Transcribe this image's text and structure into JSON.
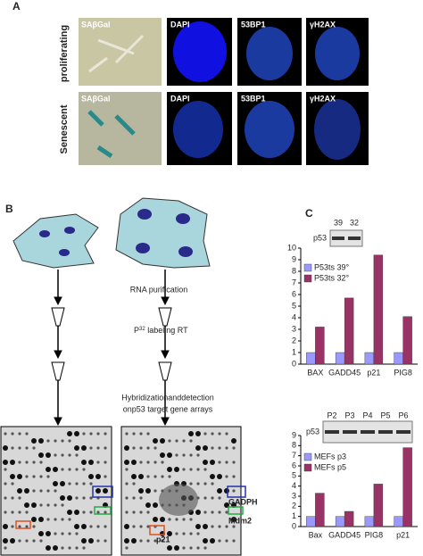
{
  "panel_a": {
    "label": "A",
    "rows": [
      {
        "label": "proliferating",
        "columns": [
          "SAβGal",
          "DAPI",
          "53BP1",
          "γH2AX"
        ]
      },
      {
        "label": "Senescent",
        "columns": [
          "SAβGal",
          "DAPI",
          "53BP1",
          "γH2AX"
        ]
      }
    ]
  },
  "panel_b": {
    "label": "B",
    "steps": [
      "RNA purification"
    ],
    "labeling": {
      "prefix": "P",
      "superscript": "32",
      "suffix": " labeling RT"
    },
    "hybridization": [
      "Hybridizationanddetection",
      "onp53 target gene arrays"
    ],
    "array_labels": [
      "GADPH",
      "Mdm2",
      "p21"
    ]
  },
  "panel_c_label": "C",
  "chart_data": [
    {
      "type": "bar",
      "blot_label": "p53",
      "blot_lanes": [
        "39",
        "32"
      ],
      "categories": [
        "BAX",
        "GADD45",
        "p21",
        "PIG8"
      ],
      "series": [
        {
          "name": "P53ts 39°",
          "color": "#9999ff",
          "values": [
            1,
            1,
            1,
            1
          ]
        },
        {
          "name": "P53ts 32°",
          "color": "#993366",
          "values": [
            3.2,
            5.7,
            9.4,
            4.1
          ]
        }
      ],
      "ylim": [
        0,
        10
      ],
      "yticks": [
        0,
        1,
        2,
        3,
        4,
        5,
        6,
        7,
        8,
        9,
        10
      ],
      "legend": "upper left"
    },
    {
      "type": "bar",
      "blot_label": "p53",
      "blot_lanes": [
        "P2",
        "P3",
        "P4",
        "P5",
        "P6"
      ],
      "categories": [
        "Bax",
        "GADD45",
        "PIG8",
        "p21"
      ],
      "series": [
        {
          "name": "MEFs  p3",
          "color": "#9999ff",
          "values": [
            1,
            1,
            1,
            1
          ]
        },
        {
          "name": "MEFs  p5",
          "color": "#993366",
          "values": [
            3.3,
            1.5,
            4.2,
            7.8
          ]
        }
      ],
      "ylim": [
        0,
        9
      ],
      "yticks": [
        0,
        1,
        2,
        3,
        4,
        5,
        6,
        7,
        8,
        9
      ],
      "legend": "upper left"
    }
  ]
}
